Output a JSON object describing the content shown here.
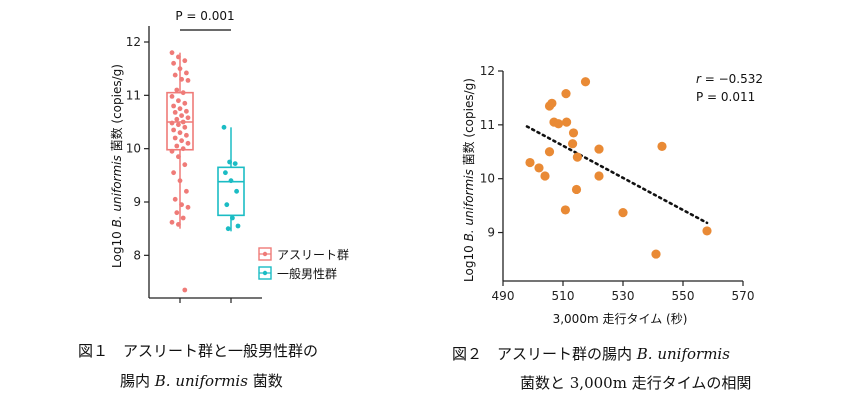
{
  "chart_data": [
    {
      "type": "box",
      "ylabel_prefix": "Log10 ",
      "ylabel_italic": "B. uniformis",
      "ylabel_suffix": " 菌数 (copies/g)",
      "ylim": [
        7.2,
        12.3
      ],
      "yticks": [
        "12",
        "11",
        "10",
        "9",
        "8"
      ],
      "significance": "P = 0.001",
      "legend": [
        "アスリート群",
        "一般男性群"
      ],
      "groups": [
        {
          "name": "アスリート群",
          "color": "#ef7b78",
          "box": {
            "q1": 9.98,
            "median": 10.5,
            "q3": 11.05,
            "whisker_low": 8.5,
            "whisker_high": 11.8
          },
          "points": [
            11.8,
            11.72,
            11.65,
            11.6,
            11.5,
            11.42,
            11.38,
            11.3,
            11.28,
            11.1,
            11.05,
            10.98,
            10.9,
            10.85,
            10.8,
            10.75,
            10.7,
            10.68,
            10.62,
            10.58,
            10.55,
            10.5,
            10.48,
            10.45,
            10.4,
            10.35,
            10.3,
            10.25,
            10.2,
            10.15,
            10.1,
            10.05,
            10.0,
            9.95,
            9.85,
            9.7,
            9.55,
            9.4,
            9.2,
            9.05,
            8.95,
            8.9,
            8.8,
            8.7,
            8.62,
            8.58,
            7.35
          ]
        },
        {
          "name": "一般男性群",
          "color": "#1bbcc4",
          "box": {
            "q1": 8.75,
            "median": 9.38,
            "q3": 9.65,
            "whisker_low": 8.45,
            "whisker_high": 10.4
          },
          "points": [
            10.4,
            9.75,
            9.72,
            9.55,
            9.4,
            9.2,
            8.95,
            8.7,
            8.55,
            8.5
          ]
        }
      ]
    },
    {
      "type": "scatter",
      "xlabel": "3,000m 走行タイム (秒)",
      "ylabel_prefix": "Log10 ",
      "ylabel_italic": "B. uniformis",
      "ylabel_suffix": " 菌数 (copies/g)",
      "xlim": [
        490,
        570
      ],
      "ylim": [
        8.1,
        12.0
      ],
      "xticks": [
        "490",
        "510",
        "530",
        "550",
        "570"
      ],
      "yticks": [
        "12",
        "11",
        "10",
        "9"
      ],
      "annotation_r": "r = −0.532",
      "annotation_p": "P = 0.011",
      "color": "#e98a35",
      "points": [
        {
          "x": 505.5,
          "y": 11.35
        },
        {
          "x": 506.3,
          "y": 11.4
        },
        {
          "x": 511.0,
          "y": 11.58
        },
        {
          "x": 517.5,
          "y": 11.8
        },
        {
          "x": 507.0,
          "y": 11.05
        },
        {
          "x": 508.5,
          "y": 11.02
        },
        {
          "x": 511.2,
          "y": 11.05
        },
        {
          "x": 513.5,
          "y": 10.85
        },
        {
          "x": 513.2,
          "y": 10.65
        },
        {
          "x": 499.0,
          "y": 10.3
        },
        {
          "x": 502.0,
          "y": 10.2
        },
        {
          "x": 504.0,
          "y": 10.05
        },
        {
          "x": 505.5,
          "y": 10.5
        },
        {
          "x": 514.8,
          "y": 10.4
        },
        {
          "x": 522.0,
          "y": 10.55
        },
        {
          "x": 522.0,
          "y": 10.05
        },
        {
          "x": 514.5,
          "y": 9.8
        },
        {
          "x": 510.8,
          "y": 9.42
        },
        {
          "x": 530.0,
          "y": 9.37
        },
        {
          "x": 543.0,
          "y": 10.6
        },
        {
          "x": 541.0,
          "y": 8.6
        },
        {
          "x": 558.0,
          "y": 9.03
        }
      ],
      "trend": {
        "x1": 498,
        "y1": 10.97,
        "x2": 558,
        "y2": 9.18
      }
    }
  ],
  "captions": {
    "fig1_line1": "図１　アスリート群と一般男性群の",
    "fig1_line2_italic": "B. uniformis",
    "fig1_line2_suffix": " 菌数",
    "fig1_line2_prefix": "腸内 ",
    "fig2_line1_prefix": "図２　アスリート群の腸内 ",
    "fig2_line1_italic": "B. uniformis",
    "fig2_line2": "菌数と 3,000m 走行タイムの相関"
  }
}
